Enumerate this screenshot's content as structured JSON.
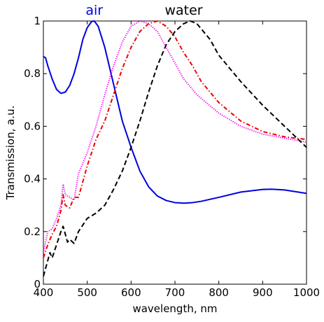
{
  "chart_data": {
    "type": "line",
    "xlabel": "wavelength, nm",
    "ylabel": "Transmission, a.u.",
    "xlim": [
      400,
      1000
    ],
    "ylim": [
      0,
      1
    ],
    "xticks": [
      "400",
      "500",
      "600",
      "700",
      "800",
      "900",
      "1000"
    ],
    "yticks": [
      "0",
      "0.2",
      "0.4",
      "0.6",
      "0.8",
      "1"
    ],
    "grid": false,
    "annotations": [
      {
        "text": "air",
        "x": 516,
        "color": "#0000dd"
      },
      {
        "text": "water",
        "x": 720,
        "color": "#000000"
      }
    ],
    "series": [
      {
        "color": "#0000dd",
        "style": "solid",
        "x": [
          400,
          405,
          410,
          420,
          430,
          440,
          450,
          460,
          470,
          480,
          490,
          500,
          510,
          516,
          525,
          540,
          560,
          580,
          600,
          620,
          640,
          660,
          680,
          700,
          720,
          740,
          760,
          800,
          850,
          900,
          920,
          950,
          1000
        ],
        "y": [
          0.865,
          0.86,
          0.83,
          0.78,
          0.74,
          0.725,
          0.73,
          0.755,
          0.8,
          0.86,
          0.93,
          0.975,
          0.998,
          1.0,
          0.98,
          0.9,
          0.76,
          0.62,
          0.52,
          0.43,
          0.37,
          0.335,
          0.318,
          0.31,
          0.308,
          0.31,
          0.315,
          0.33,
          0.35,
          0.36,
          0.361,
          0.358,
          0.345
        ]
      },
      {
        "color": "#ee00ee",
        "style": "dotted",
        "x": [
          400,
          410,
          420,
          430,
          440,
          445,
          450,
          460,
          470,
          480,
          500,
          520,
          540,
          560,
          580,
          600,
          620,
          640,
          660,
          680,
          700,
          720,
          750,
          800,
          850,
          900,
          950,
          1000
        ],
        "y": [
          0.12,
          0.2,
          0.21,
          0.25,
          0.3,
          0.38,
          0.34,
          0.33,
          0.32,
          0.42,
          0.5,
          0.6,
          0.72,
          0.83,
          0.92,
          0.98,
          1.0,
          0.99,
          0.96,
          0.9,
          0.84,
          0.78,
          0.72,
          0.65,
          0.6,
          0.57,
          0.555,
          0.54
        ]
      },
      {
        "color": "#ee0000",
        "style": "dashdot",
        "x": [
          400,
          410,
          420,
          430,
          440,
          445,
          450,
          460,
          470,
          480,
          500,
          520,
          540,
          560,
          580,
          600,
          620,
          640,
          660,
          680,
          700,
          720,
          740,
          760,
          800,
          850,
          900,
          950,
          1000
        ],
        "y": [
          0.1,
          0.15,
          0.19,
          0.22,
          0.28,
          0.34,
          0.3,
          0.29,
          0.33,
          0.33,
          0.45,
          0.55,
          0.62,
          0.72,
          0.82,
          0.9,
          0.96,
          0.99,
          1.0,
          0.98,
          0.94,
          0.88,
          0.83,
          0.77,
          0.69,
          0.62,
          0.58,
          0.56,
          0.55
        ]
      },
      {
        "color": "#000000",
        "style": "dashed",
        "x": [
          400,
          410,
          415,
          420,
          430,
          440,
          445,
          450,
          455,
          460,
          470,
          480,
          500,
          520,
          540,
          560,
          580,
          600,
          620,
          640,
          660,
          680,
          700,
          720,
          735,
          750,
          780,
          800,
          850,
          900,
          950,
          1000
        ],
        "y": [
          0.03,
          0.09,
          0.12,
          0.1,
          0.15,
          0.2,
          0.22,
          0.19,
          0.16,
          0.17,
          0.155,
          0.2,
          0.25,
          0.27,
          0.3,
          0.36,
          0.43,
          0.52,
          0.62,
          0.73,
          0.83,
          0.91,
          0.96,
          0.99,
          1.0,
          0.99,
          0.93,
          0.87,
          0.77,
          0.68,
          0.6,
          0.52
        ]
      }
    ]
  }
}
